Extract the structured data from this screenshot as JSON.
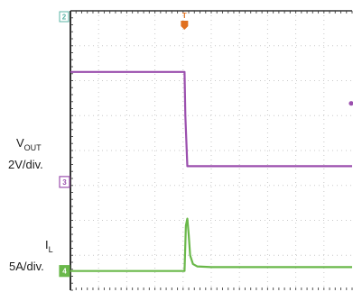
{
  "chart_data": {
    "type": "line",
    "title": "",
    "grid": true,
    "grid_divisions": {
      "x": 10,
      "y": 8
    },
    "trigger_marker": {
      "label": "T",
      "color": "#e07020"
    },
    "ref_marker_top": {
      "label": "2",
      "color": "#59b4a6"
    },
    "series": [
      {
        "name": "VOUT",
        "label_main": "V",
        "label_sub": "OUT",
        "scale_text": "2V/div.",
        "channel": "3",
        "color": "#9b4fae",
        "ref_level_div": 3.1,
        "x": [
          0,
          4.05,
          4.08,
          4.15,
          4.3,
          10
        ],
        "y": [
          6.25,
          6.25,
          5.0,
          3.55,
          3.55,
          3.55
        ]
      },
      {
        "name": "IL",
        "label_main": "I",
        "label_sub": "L",
        "scale_text": "5A/div.",
        "channel": "4",
        "color": "#6ab84a",
        "ref_level_div": 0.55,
        "x": [
          0,
          4.05,
          4.1,
          4.15,
          4.2,
          4.25,
          4.35,
          4.5,
          5.0,
          10
        ],
        "y": [
          0.55,
          0.55,
          1.85,
          2.05,
          1.6,
          1.0,
          0.75,
          0.68,
          0.66,
          0.66
        ]
      }
    ]
  }
}
